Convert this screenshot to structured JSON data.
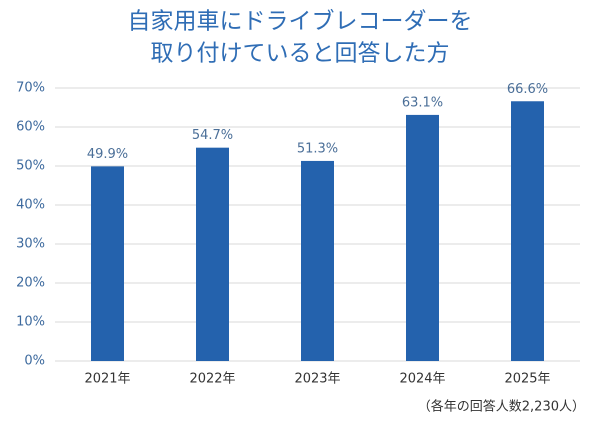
{
  "chart_data": {
    "type": "bar",
    "title": [
      "自家用車にドライブレコーダーを",
      "取り付けていると回答した方"
    ],
    "categories": [
      "2021年",
      "2022年",
      "2023年",
      "2024年",
      "2025年"
    ],
    "values": [
      49.9,
      54.7,
      51.3,
      63.1,
      66.6
    ],
    "value_labels": [
      "49.9%",
      "54.7%",
      "51.3%",
      "63.1%",
      "66.6%"
    ],
    "color": "#2462ad",
    "ylim": [
      0,
      70
    ],
    "yticks": [
      {
        "value": 0,
        "label": "0%"
      },
      {
        "value": 10,
        "label": "10%"
      },
      {
        "value": 20,
        "label": "20%"
      },
      {
        "value": 30,
        "label": "30%"
      },
      {
        "value": 40,
        "label": "40%"
      },
      {
        "value": 50,
        "label": "50%"
      },
      {
        "value": 60,
        "label": "60%"
      },
      {
        "value": 70,
        "label": "70%"
      }
    ],
    "grid": true,
    "note": "（各年の回答人数2,230人）"
  }
}
